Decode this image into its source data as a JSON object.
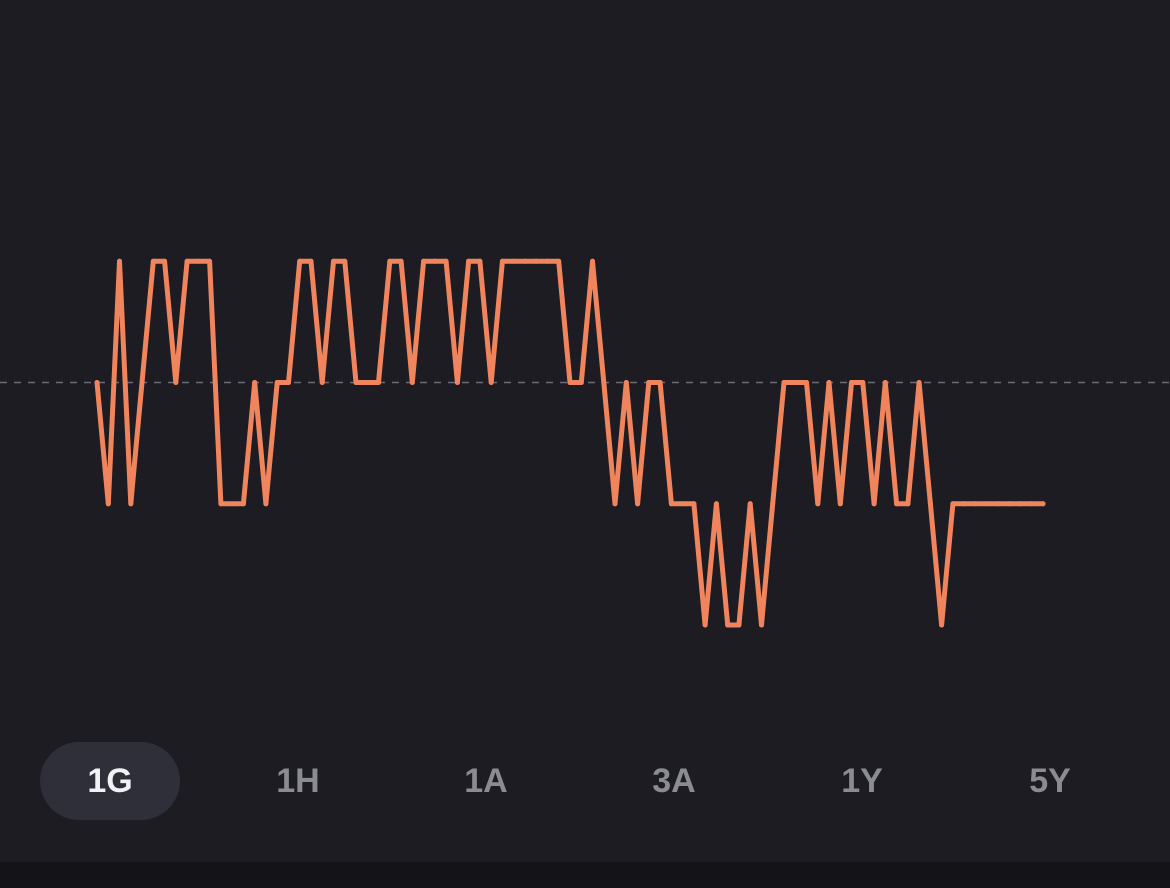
{
  "colors": {
    "background": "#1c1c22",
    "line": "#f0845c",
    "baseline": "#6b6b78",
    "active_pill": "#2e2f38",
    "active_text": "#f2f2f5",
    "inactive_text": "#8b8b94"
  },
  "range_selector": {
    "selected": "1G",
    "options": [
      "1G",
      "1H",
      "1A",
      "3A",
      "1Y",
      "5Y"
    ]
  },
  "chart_data": {
    "type": "line",
    "title": "",
    "xlabel": "",
    "ylabel": "",
    "ylim": [
      -2,
      2
    ],
    "baseline": 0,
    "grid": false,
    "series": [
      {
        "values": [
          0,
          -1,
          1,
          -1,
          0,
          1,
          1,
          0,
          1,
          1,
          1,
          -1,
          -1,
          -1,
          0,
          -1,
          0,
          0,
          1,
          1,
          0,
          1,
          1,
          0,
          0,
          0,
          1,
          1,
          0,
          1,
          1,
          1,
          0,
          1,
          1,
          0,
          1,
          1,
          1,
          1,
          1,
          1,
          0,
          0,
          1,
          0,
          -1,
          0,
          -1,
          0,
          0,
          -1,
          -1,
          -1,
          -2,
          -1,
          -2,
          -2,
          -1,
          -2,
          -1,
          0,
          0,
          0,
          -1,
          0,
          -1,
          0,
          0,
          -1,
          0,
          -1,
          -1,
          0,
          -1,
          -2,
          -1,
          -1,
          -1,
          -1,
          -1,
          -1,
          -1,
          -1,
          -1
        ]
      }
    ]
  }
}
